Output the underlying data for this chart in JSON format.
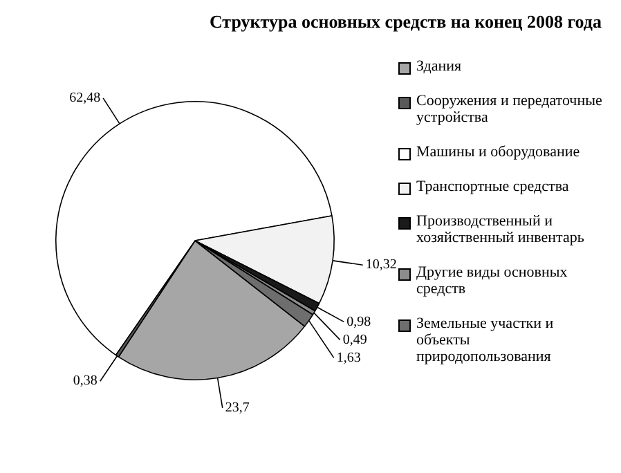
{
  "chart_data": {
    "type": "pie",
    "title": "Структура основных средств на конец 2008 года",
    "categories": [
      "Здания",
      "Сооружения и передаточные устройства",
      "Машины и оборудование",
      "Транспортные средства",
      "Производственный и хозяйственный инвентарь",
      "Другие виды основных средств",
      "Земельные участки и объекты природопользования"
    ],
    "values": [
      23.7,
      0.38,
      62.48,
      10.32,
      0.98,
      0.49,
      1.63
    ],
    "value_labels": [
      "23,7",
      "0,38",
      "62,48",
      "10,32",
      "0,98",
      "0,49",
      "1,63"
    ],
    "colors": [
      "#a6a6a6",
      "#595959",
      "#ffffff",
      "#f2f2f2",
      "#1a1a1a",
      "#8c8c8c",
      "#6e6e6e"
    ],
    "legend": "right"
  }
}
